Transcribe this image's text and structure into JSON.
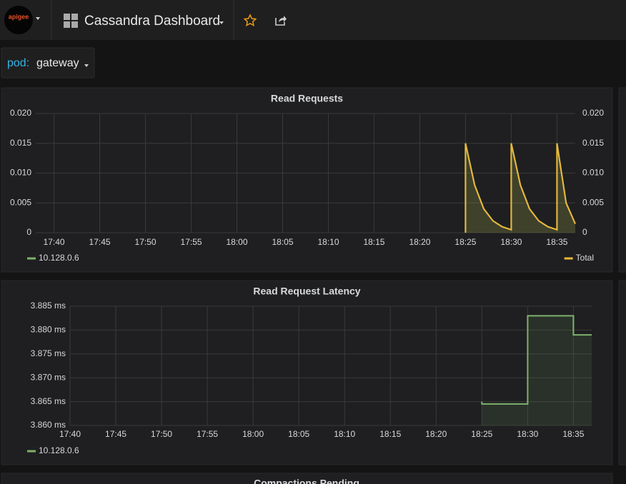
{
  "header": {
    "logo": "apigee",
    "title": "Cassandra Dashboard"
  },
  "variables": [
    {
      "label": "pod:",
      "value": "gateway"
    }
  ],
  "chart_data": [
    {
      "type": "line",
      "title": "Read Requests",
      "x": [
        "18:25",
        "18:25",
        "18:26",
        "18:27",
        "18:28",
        "18:29",
        "18:30",
        "18:30",
        "18:31",
        "18:32",
        "18:33",
        "18:34",
        "18:35",
        "18:35",
        "18:36",
        "18:37"
      ],
      "series": [
        {
          "name": "10.128.0.6",
          "color": "#7eb26d",
          "values": [
            0,
            0.015,
            0.008,
            0.004,
            0.002,
            0.001,
            0.0005,
            0.015,
            0.008,
            0.004,
            0.002,
            0.001,
            0.0005,
            0.015,
            0.005,
            0.0015
          ]
        },
        {
          "name": "Total",
          "color": "#eab839",
          "axis": "y2",
          "values": [
            0,
            0.015,
            0.008,
            0.004,
            0.002,
            0.001,
            0.0005,
            0.015,
            0.008,
            0.004,
            0.002,
            0.001,
            0.0005,
            0.015,
            0.005,
            0.0015
          ]
        }
      ],
      "xlim": [
        "17:38",
        "18:37"
      ],
      "xticks": [
        "17:40",
        "17:45",
        "17:50",
        "17:55",
        "18:00",
        "18:05",
        "18:10",
        "18:15",
        "18:20",
        "18:25",
        "18:30",
        "18:35"
      ],
      "ylim": [
        0,
        0.02
      ],
      "yticks": [
        0,
        0.005,
        {
          "value": 0.01,
          "label": "0.010"
        },
        0.015,
        {
          "value": 0.02,
          "label": "0.020"
        }
      ],
      "y2lim": [
        0,
        0.02
      ],
      "y2ticks": [
        0,
        0.005,
        {
          "value": 0.01,
          "label": "0.010"
        },
        0.015,
        {
          "value": 0.02,
          "label": "0.020"
        }
      ],
      "grid": true
    },
    {
      "type": "line",
      "title": "Read Request Latency",
      "x": [
        "18:25",
        "18:25",
        "18:30",
        "18:30",
        "18:35",
        "18:35",
        "18:37"
      ],
      "series": [
        {
          "name": "10.128.0.6",
          "color": "#7eb26d",
          "values": [
            3.865,
            3.8645,
            3.8645,
            3.883,
            3.883,
            3.879,
            3.879
          ]
        }
      ],
      "xlim": [
        "17:40",
        "18:37"
      ],
      "xticks": [
        "17:40",
        "17:45",
        "17:50",
        "17:55",
        "18:00",
        "18:05",
        "18:10",
        "18:15",
        "18:20",
        "18:25",
        "18:30",
        "18:35"
      ],
      "ylim": [
        3.86,
        3.885
      ],
      "yticks": [
        {
          "value": 3.86,
          "label": "3.860 ms"
        },
        {
          "value": 3.865,
          "label": "3.865 ms"
        },
        {
          "value": 3.87,
          "label": "3.870 ms"
        },
        {
          "value": 3.875,
          "label": "3.875 ms"
        },
        {
          "value": 3.88,
          "label": "3.880 ms"
        },
        {
          "value": 3.885,
          "label": "3.885 ms"
        }
      ],
      "grid": true
    }
  ],
  "next_panel": {
    "title": "Compactions Pending"
  }
}
